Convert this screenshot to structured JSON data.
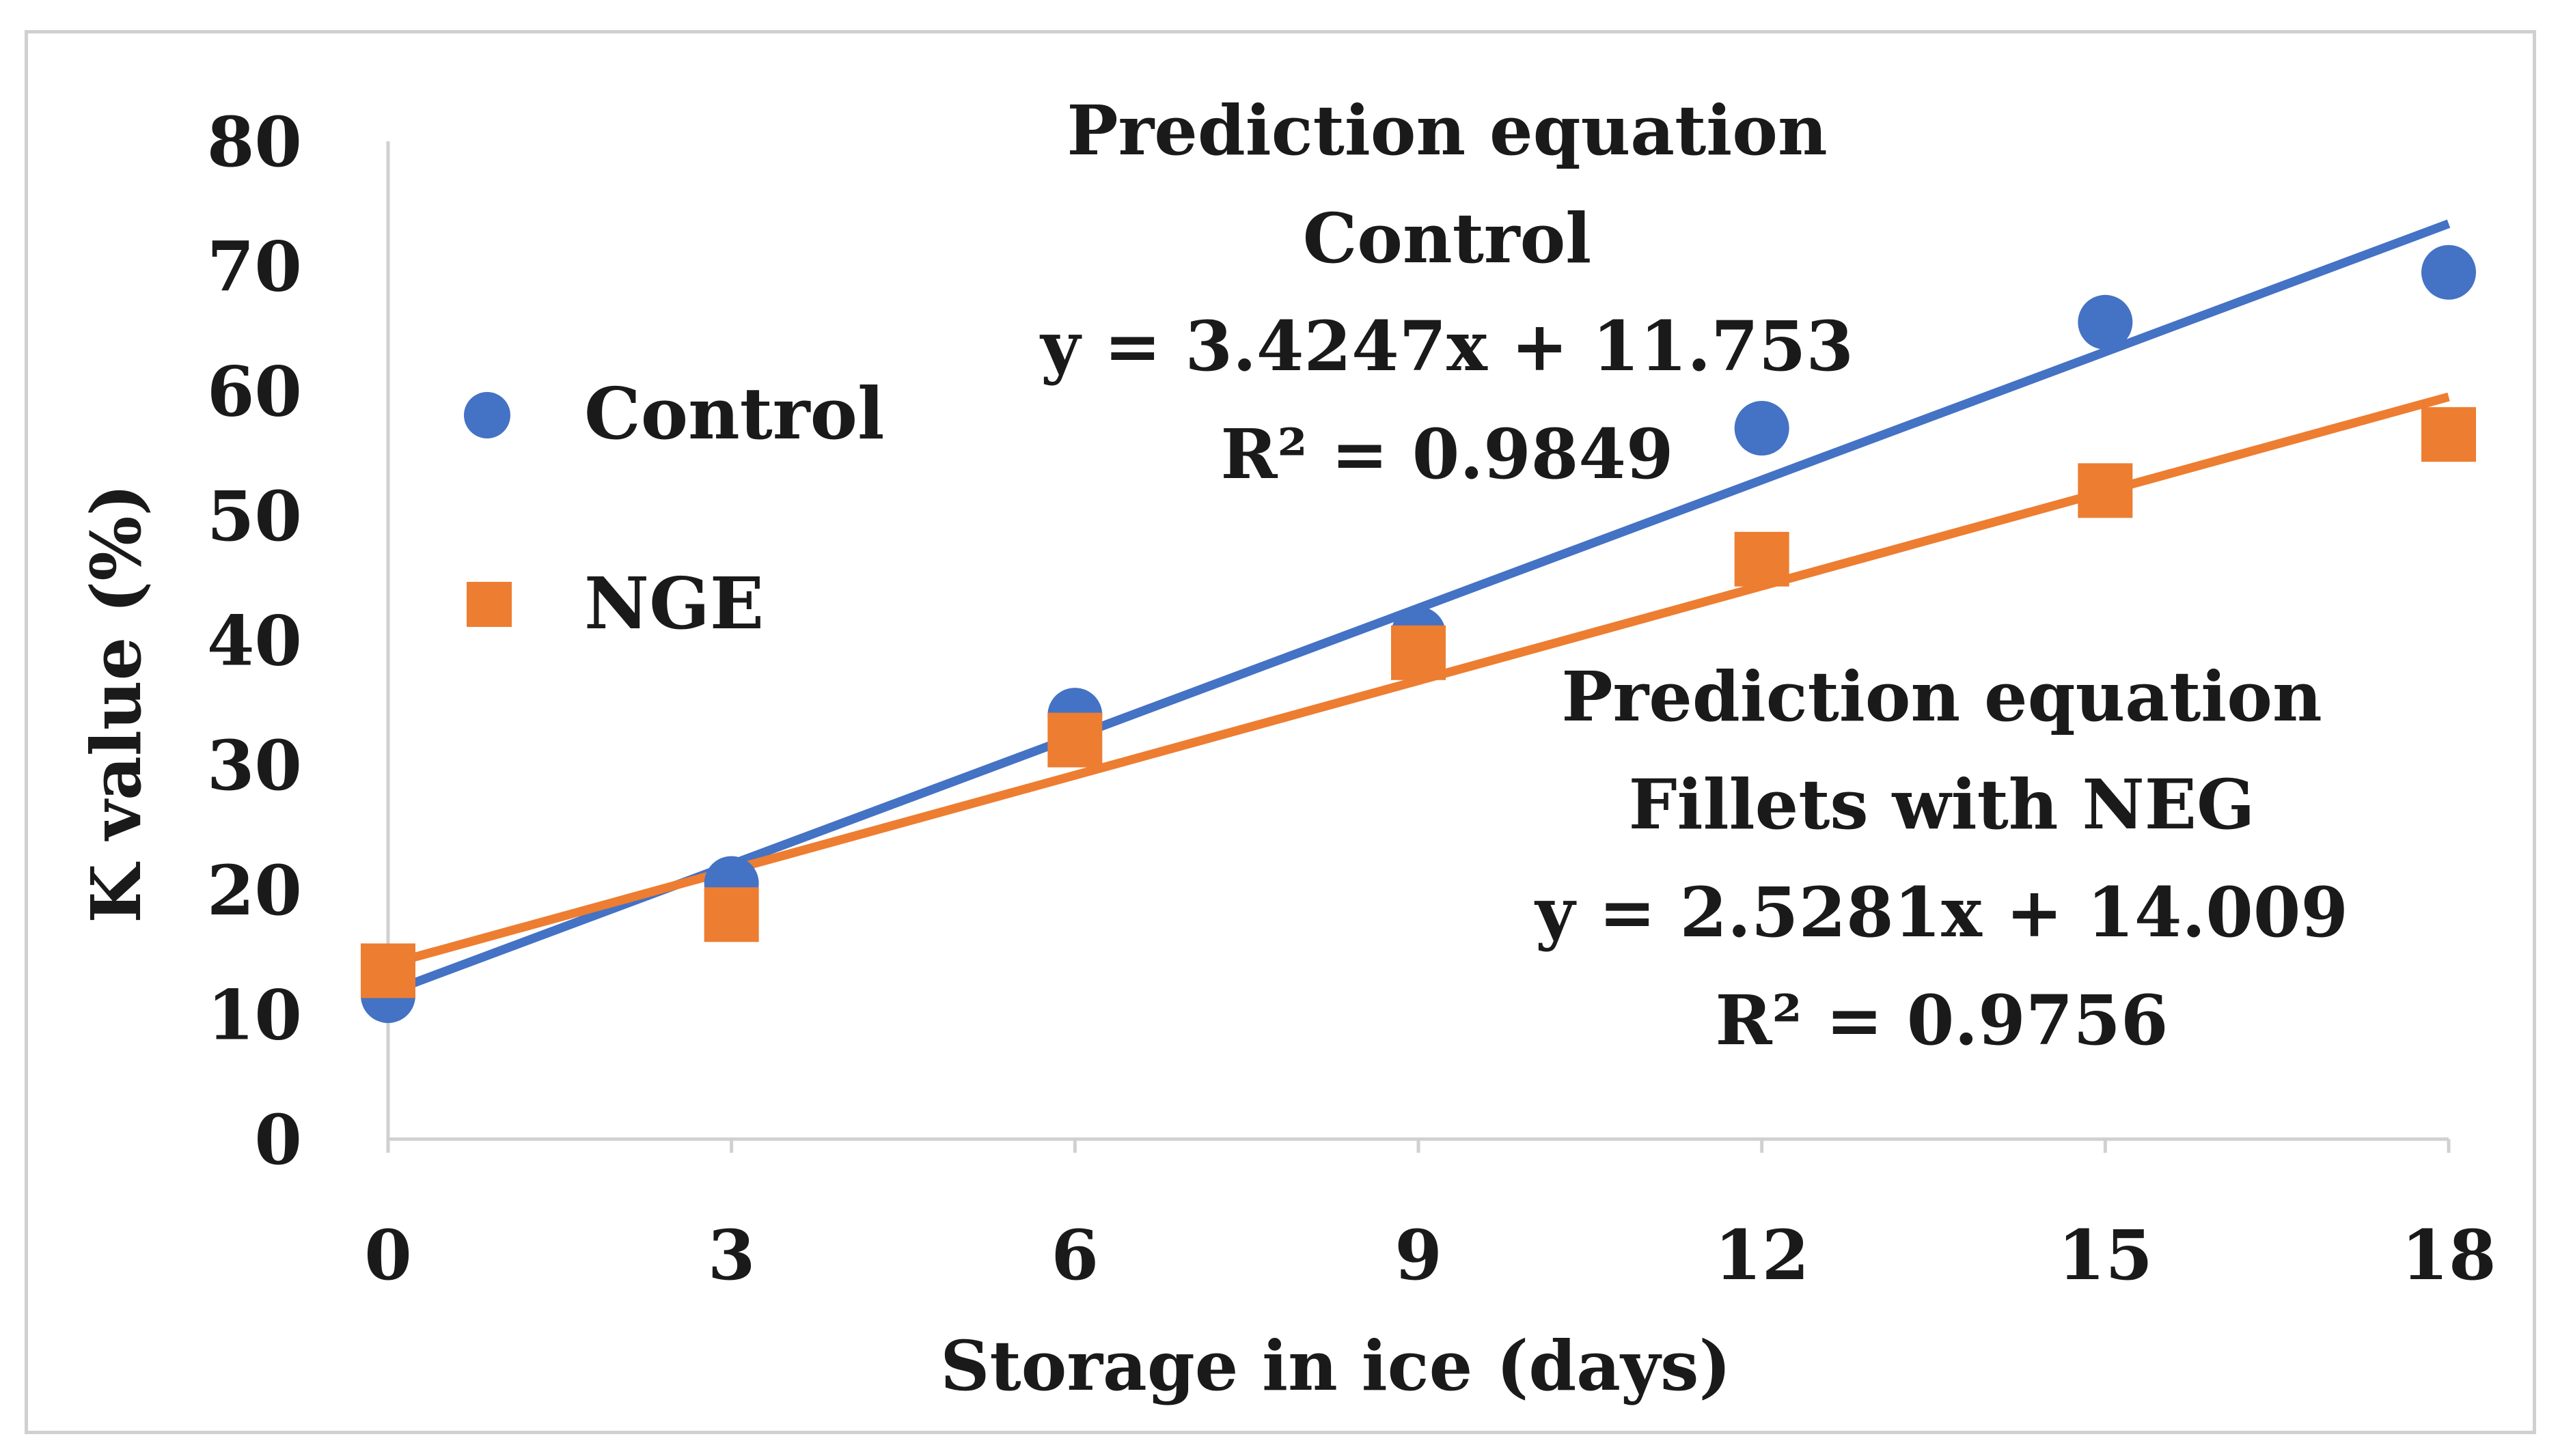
{
  "chart_data": {
    "type": "scatter",
    "xlabel": "Storage in ice (days)",
    "ylabel": "K value (%)",
    "xlim": [
      0,
      18
    ],
    "ylim": [
      0,
      80
    ],
    "x_ticks": [
      "0",
      "3",
      "6",
      "9",
      "12",
      "15",
      "18"
    ],
    "y_ticks": [
      "0",
      "10",
      "20",
      "30",
      "40",
      "50",
      "60",
      "70",
      "80"
    ],
    "x": [
      0,
      3,
      6,
      9,
      12,
      15,
      18
    ],
    "series": [
      {
        "name": "Control",
        "marker": "circle",
        "color": "#4472c4",
        "values": [
          11.5,
          20.5,
          34,
          40.5,
          57,
          65.5,
          69.5
        ],
        "trendline": {
          "slope": 3.4247,
          "intercept": 11.753
        }
      },
      {
        "name": "NGE",
        "marker": "square",
        "color": "#ed7d31",
        "values": [
          13.5,
          18,
          32,
          39,
          46.5,
          52,
          56.5
        ],
        "trendline": {
          "slope": 2.5281,
          "intercept": 14.009
        }
      }
    ],
    "legend": {
      "placement": "left-inside",
      "entries": [
        "Control",
        "NGE"
      ]
    },
    "annotations": {
      "control": {
        "title": "Prediction equation",
        "subtitle": "Control",
        "equation": "y = 3.4247x + 11.753",
        "r2": "R² = 0.9849"
      },
      "nge": {
        "title": "Prediction equation",
        "subtitle": "Fillets with NEG",
        "equation": "y = 2.5281x + 14.009",
        "r2": "R² = 0.9756"
      }
    },
    "grid": false
  }
}
